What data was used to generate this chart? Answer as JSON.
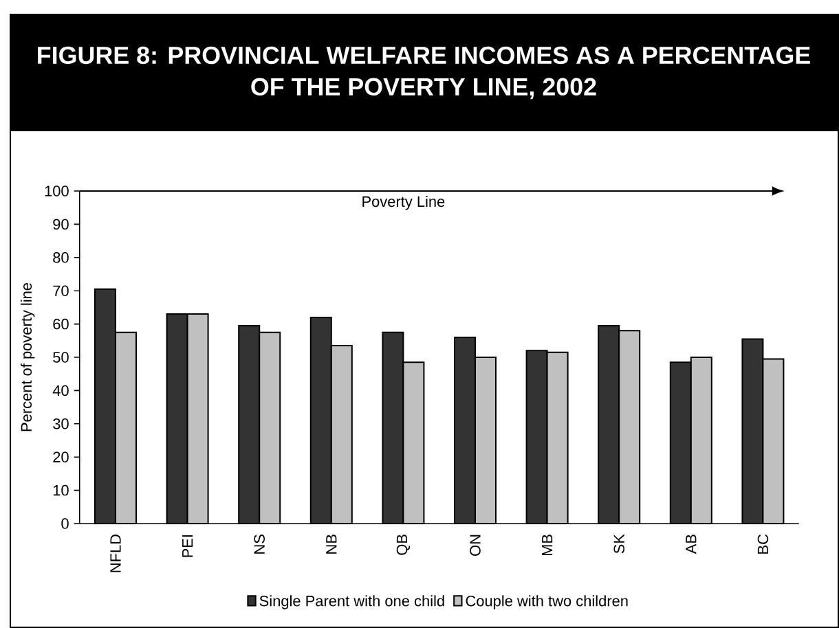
{
  "chart_data": {
    "type": "bar",
    "title": "FIGURE 8: PROVINCIAL WELFARE INCOMES AS A PERCENTAGE OF THE POVERTY LINE,  2002",
    "ylabel": "Percent of poverty line",
    "categories": [
      "NFLD",
      "PEI",
      "NS",
      "NB",
      "QB",
      "ON",
      "MB",
      "SK",
      "AB",
      "BC"
    ],
    "series": [
      {
        "name": "Single Parent with one child",
        "color": "#333333",
        "values": [
          70.5,
          63,
          59.5,
          62,
          57.5,
          56,
          52,
          59.5,
          48.5,
          55.5
        ]
      },
      {
        "name": "Couple with two children",
        "color": "#c0c0c0",
        "values": [
          57.5,
          63,
          57.5,
          53.5,
          48.5,
          50,
          51.5,
          58,
          50,
          49.5
        ]
      }
    ],
    "ylim": [
      0,
      100
    ],
    "yticks": [
      0,
      10,
      20,
      30,
      40,
      50,
      60,
      70,
      80,
      90,
      100
    ],
    "ref_lines": [
      {
        "axis": "y",
        "value": 100,
        "label": "Poverty Line"
      }
    ],
    "legend": "bottom"
  }
}
